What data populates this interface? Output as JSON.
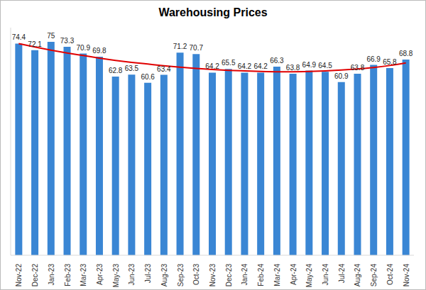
{
  "chart_data": {
    "type": "bar",
    "title": "Warehousing Prices",
    "categories": [
      "Nov-22",
      "Dec-22",
      "Jan-23",
      "Feb-23",
      "Mar-23",
      "Apr-23",
      "May-23",
      "Jun-23",
      "Jul-23",
      "Aug-23",
      "Sep-23",
      "Oct-23",
      "Nov-23",
      "Dec-23",
      "Jan-24",
      "Feb-24",
      "Mar-24",
      "Apr-24",
      "May-24",
      "Jun-24",
      "Jul-24",
      "Aug-24",
      "Sep-24",
      "Oct-24",
      "Nov-24"
    ],
    "series": [
      {
        "type": "bar",
        "color": "#3a86d4",
        "data_labels": true,
        "values": [
          74.4,
          72.1,
          75.0,
          73.3,
          70.9,
          69.8,
          62.8,
          63.5,
          60.6,
          63.4,
          71.2,
          70.7,
          64.2,
          65.5,
          64.2,
          64.2,
          66.3,
          63.8,
          64.9,
          64.5,
          60.9,
          63.8,
          66.9,
          65.8,
          68.8
        ]
      },
      {
        "type": "line",
        "color": "#e00000",
        "marker": "none",
        "line_style": "solid",
        "values": [
          74.4,
          73.2,
          72.1,
          71.1,
          70.2,
          69.3,
          68.5,
          67.8,
          67.2,
          66.6,
          66.1,
          65.7,
          65.3,
          65.0,
          64.8,
          64.6,
          64.5,
          64.5,
          64.6,
          64.8,
          65.1,
          65.5,
          66.0,
          66.7,
          67.6
        ]
      }
    ],
    "ylim": [
      0,
      80
    ],
    "grid": false,
    "tick_labels": "x"
  }
}
